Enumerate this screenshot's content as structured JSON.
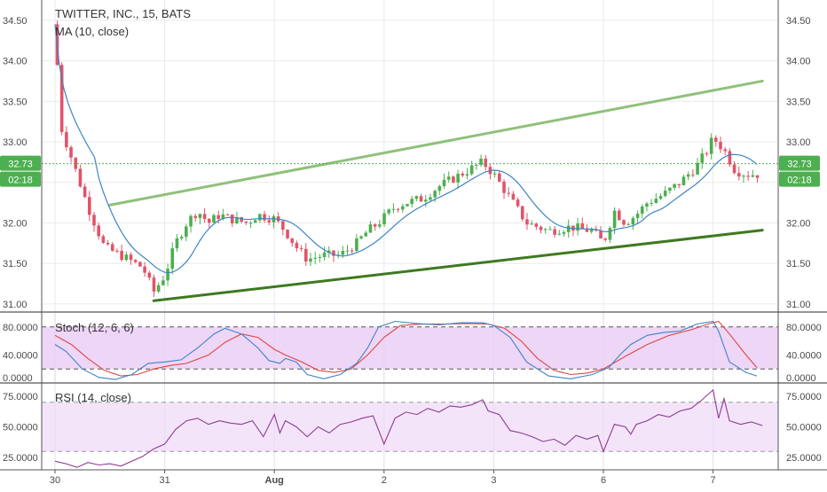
{
  "chart_data": {
    "type": "candlestick",
    "title": "TWITTER, INC., 15, BATS",
    "overlay_label": "MA (10, close)",
    "last_price": "32.73",
    "countdown": "02:18",
    "x_ticks": [
      "30",
      "31",
      "Aug",
      "2",
      "3",
      "6",
      "7"
    ],
    "price_axis": {
      "range": [
        30.9,
        34.75
      ],
      "ticks": [
        "34.50",
        "34.00",
        "33.50",
        "33.00",
        "32.50",
        "32.00",
        "31.50",
        "31.00"
      ]
    },
    "trendlines": [
      {
        "from": [
          0.5,
          32.22
        ],
        "to": [
          6.45,
          33.75
        ],
        "color": "#8fc17a"
      },
      {
        "from": [
          0.9,
          31.04
        ],
        "to": [
          6.45,
          31.91
        ],
        "color": "#3d7a1f"
      }
    ],
    "stoch": {
      "label": "Stoch (12, 6, 6)",
      "ticks": [
        "80.0000",
        "40.0000",
        "0.0000"
      ],
      "range": [
        0,
        100
      ],
      "band": [
        20,
        80
      ],
      "k_points": [
        [
          0,
          55
        ],
        [
          0.1,
          45
        ],
        [
          0.25,
          20
        ],
        [
          0.4,
          8
        ],
        [
          0.55,
          5
        ],
        [
          0.7,
          12
        ],
        [
          0.85,
          28
        ],
        [
          1.0,
          30
        ],
        [
          1.15,
          33
        ],
        [
          1.3,
          50
        ],
        [
          1.45,
          70
        ],
        [
          1.55,
          78
        ],
        [
          1.7,
          70
        ],
        [
          1.85,
          50
        ],
        [
          1.95,
          32
        ],
        [
          2.05,
          28
        ],
        [
          2.1,
          35
        ],
        [
          2.2,
          30
        ],
        [
          2.3,
          12
        ],
        [
          2.45,
          6
        ],
        [
          2.6,
          12
        ],
        [
          2.75,
          28
        ],
        [
          2.85,
          50
        ],
        [
          2.95,
          80
        ],
        [
          3.1,
          88
        ],
        [
          3.3,
          85
        ],
        [
          3.5,
          83
        ],
        [
          3.7,
          86
        ],
        [
          3.9,
          86
        ],
        [
          4.0,
          82
        ],
        [
          4.15,
          65
        ],
        [
          4.3,
          30
        ],
        [
          4.5,
          10
        ],
        [
          4.7,
          6
        ],
        [
          4.9,
          12
        ],
        [
          5.05,
          22
        ],
        [
          5.15,
          40
        ],
        [
          5.25,
          55
        ],
        [
          5.4,
          68
        ],
        [
          5.55,
          72
        ],
        [
          5.7,
          74
        ],
        [
          5.85,
          84
        ],
        [
          6.0,
          88
        ],
        [
          6.05,
          74
        ],
        [
          6.15,
          30
        ],
        [
          6.3,
          15
        ],
        [
          6.4,
          10
        ]
      ],
      "d_points": [
        [
          0,
          68
        ],
        [
          0.15,
          55
        ],
        [
          0.3,
          35
        ],
        [
          0.45,
          18
        ],
        [
          0.6,
          10
        ],
        [
          0.75,
          12
        ],
        [
          0.9,
          20
        ],
        [
          1.05,
          25
        ],
        [
          1.2,
          28
        ],
        [
          1.4,
          40
        ],
        [
          1.55,
          58
        ],
        [
          1.7,
          70
        ],
        [
          1.85,
          65
        ],
        [
          2.0,
          48
        ],
        [
          2.1,
          40
        ],
        [
          2.25,
          30
        ],
        [
          2.4,
          18
        ],
        [
          2.55,
          15
        ],
        [
          2.7,
          20
        ],
        [
          2.85,
          40
        ],
        [
          3.0,
          65
        ],
        [
          3.15,
          82
        ],
        [
          3.35,
          84
        ],
        [
          3.55,
          84
        ],
        [
          3.75,
          85
        ],
        [
          3.95,
          84
        ],
        [
          4.1,
          78
        ],
        [
          4.25,
          60
        ],
        [
          4.4,
          35
        ],
        [
          4.55,
          18
        ],
        [
          4.7,
          12
        ],
        [
          4.85,
          14
        ],
        [
          5.0,
          20
        ],
        [
          5.2,
          38
        ],
        [
          5.4,
          55
        ],
        [
          5.6,
          68
        ],
        [
          5.8,
          76
        ],
        [
          5.95,
          84
        ],
        [
          6.05,
          88
        ],
        [
          6.15,
          70
        ],
        [
          6.3,
          40
        ],
        [
          6.4,
          22
        ]
      ],
      "k_color": "#3d84c6",
      "d_color": "#e0453f"
    },
    "rsi": {
      "label": "RSI (14, close)",
      "ticks": [
        "75.0000",
        "50.0000",
        "25.0000"
      ],
      "range": [
        15,
        85
      ],
      "band": [
        30,
        70
      ],
      "points": [
        [
          0,
          22
        ],
        [
          0.1,
          20
        ],
        [
          0.2,
          17
        ],
        [
          0.3,
          21
        ],
        [
          0.4,
          19
        ],
        [
          0.5,
          20
        ],
        [
          0.6,
          18
        ],
        [
          0.7,
          22
        ],
        [
          0.8,
          26
        ],
        [
          0.9,
          32
        ],
        [
          1.0,
          36
        ],
        [
          1.1,
          48
        ],
        [
          1.2,
          55
        ],
        [
          1.3,
          57
        ],
        [
          1.4,
          52
        ],
        [
          1.5,
          55
        ],
        [
          1.6,
          53
        ],
        [
          1.7,
          52
        ],
        [
          1.8,
          55
        ],
        [
          1.9,
          42
        ],
        [
          2.0,
          60
        ],
        [
          2.05,
          45
        ],
        [
          2.1,
          55
        ],
        [
          2.2,
          50
        ],
        [
          2.3,
          42
        ],
        [
          2.4,
          50
        ],
        [
          2.5,
          45
        ],
        [
          2.6,
          52
        ],
        [
          2.7,
          54
        ],
        [
          2.8,
          57
        ],
        [
          2.9,
          59
        ],
        [
          3.0,
          36
        ],
        [
          3.1,
          57
        ],
        [
          3.2,
          62
        ],
        [
          3.3,
          60
        ],
        [
          3.4,
          65
        ],
        [
          3.5,
          62
        ],
        [
          3.6,
          67
        ],
        [
          3.7,
          66
        ],
        [
          3.8,
          68
        ],
        [
          3.9,
          72
        ],
        [
          3.95,
          63
        ],
        [
          4.05,
          60
        ],
        [
          4.15,
          47
        ],
        [
          4.25,
          45
        ],
        [
          4.35,
          42
        ],
        [
          4.45,
          38
        ],
        [
          4.55,
          40
        ],
        [
          4.65,
          35
        ],
        [
          4.75,
          43
        ],
        [
          4.85,
          40
        ],
        [
          4.95,
          43
        ],
        [
          5.0,
          30
        ],
        [
          5.1,
          52
        ],
        [
          5.2,
          50
        ],
        [
          5.25,
          44
        ],
        [
          5.3,
          52
        ],
        [
          5.4,
          55
        ],
        [
          5.5,
          60
        ],
        [
          5.6,
          58
        ],
        [
          5.7,
          63
        ],
        [
          5.8,
          65
        ],
        [
          5.9,
          72
        ],
        [
          6.0,
          80
        ],
        [
          6.05,
          57
        ],
        [
          6.1,
          73
        ],
        [
          6.15,
          55
        ],
        [
          6.25,
          52
        ],
        [
          6.35,
          54
        ],
        [
          6.45,
          51
        ]
      ],
      "color": "#8e3b8e"
    }
  },
  "colors": {
    "up": "#4caf50",
    "down": "#e0546a",
    "ma": "#3d84c6",
    "pane_fill": "#eed6f7",
    "last_price_badge": "#4caf50"
  }
}
